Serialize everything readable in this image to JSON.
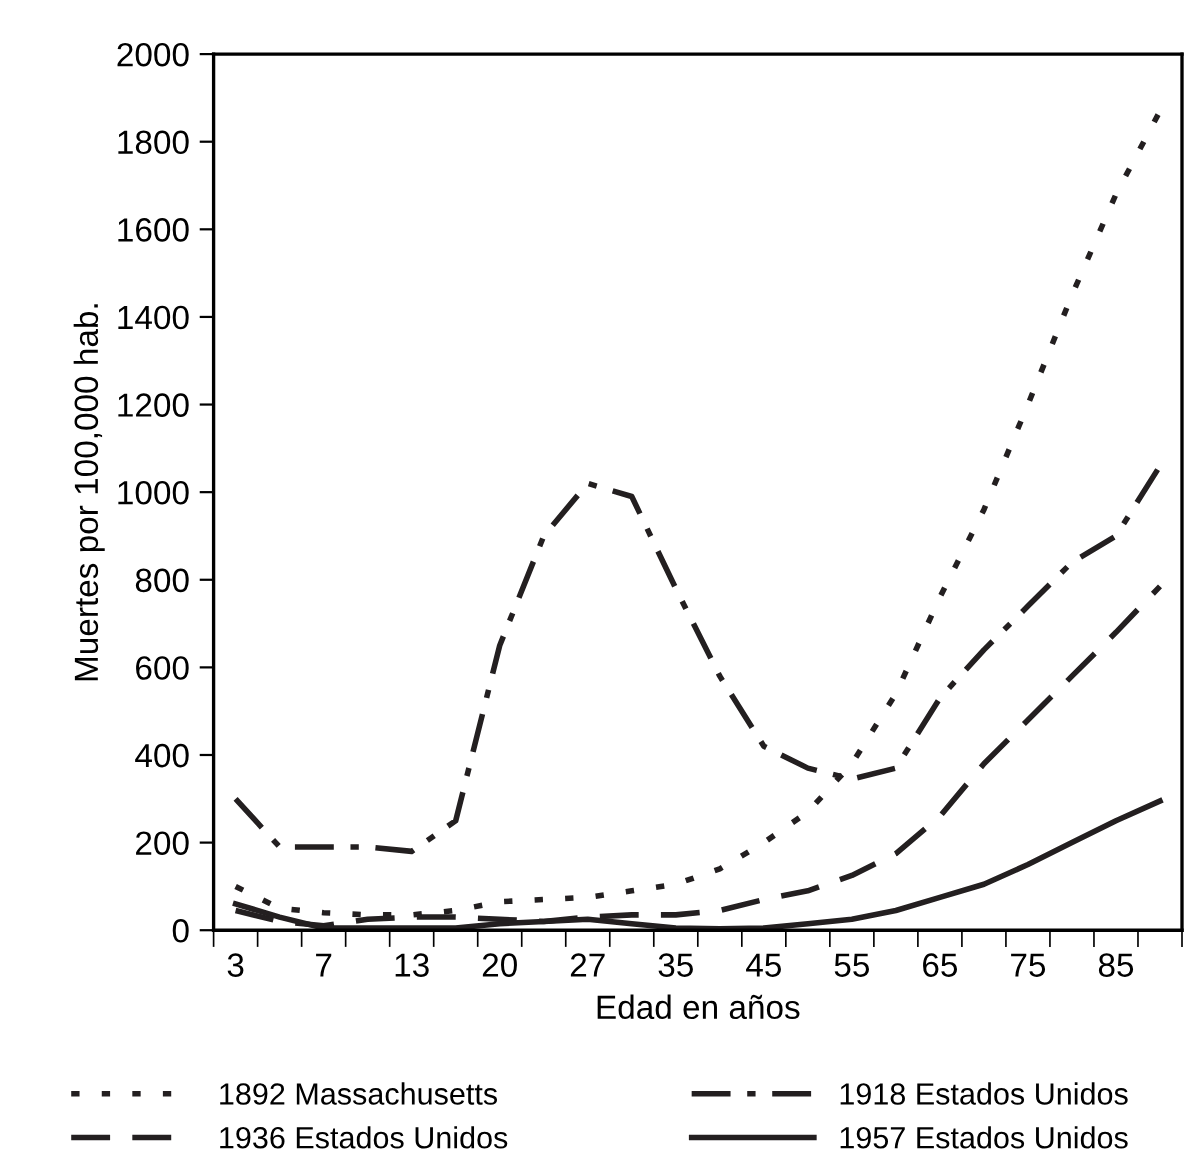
{
  "chart_data": {
    "type": "line",
    "xlabel": "Edad en años",
    "ylabel": "Muertes por 100,000 hab.",
    "categories": [
      "3",
      null,
      "7",
      null,
      "13",
      null,
      "20",
      null,
      "27",
      null,
      "35",
      null,
      "45",
      null,
      "55",
      null,
      "65",
      null,
      "75",
      null,
      "85",
      null
    ],
    "ylim": [
      0,
      2000
    ],
    "yticks": [
      0,
      200,
      400,
      600,
      800,
      1000,
      1200,
      1400,
      1600,
      1800,
      2000
    ],
    "grid": false,
    "legend": "bottom",
    "marker": "none",
    "series": [
      {
        "name": "1892 Massachusetts",
        "color": "#231f20",
        "line_style": "dotted",
        "values": [
          100,
          50,
          40,
          35,
          35,
          45,
          65,
          70,
          75,
          90,
          105,
          140,
          200,
          270,
          380,
          540,
          760,
          960,
          1200,
          1450,
          1680,
          1870
        ]
      },
      {
        "name": "1918 Estados Unidos",
        "color": "#231f20",
        "line_style": "dashdot",
        "values": [
          300,
          190,
          190,
          190,
          180,
          250,
          650,
          900,
          1020,
          990,
          780,
          580,
          420,
          370,
          345,
          370,
          530,
          640,
          740,
          840,
          900,
          1060
        ]
      },
      {
        "name": "1936 Estados Unidos",
        "color": "#231f20",
        "line_style": "dashed",
        "values": [
          45,
          20,
          10,
          25,
          30,
          30,
          25,
          20,
          30,
          35,
          35,
          45,
          70,
          90,
          125,
          175,
          260,
          380,
          480,
          580,
          680,
          785
        ]
      },
      {
        "name": "1957 Estados Unidos",
        "color": "#231f20",
        "line_style": "solid",
        "values": [
          60,
          30,
          5,
          5,
          5,
          5,
          15,
          20,
          25,
          15,
          5,
          3,
          5,
          15,
          25,
          45,
          75,
          105,
          150,
          200,
          250,
          295
        ]
      }
    ]
  }
}
